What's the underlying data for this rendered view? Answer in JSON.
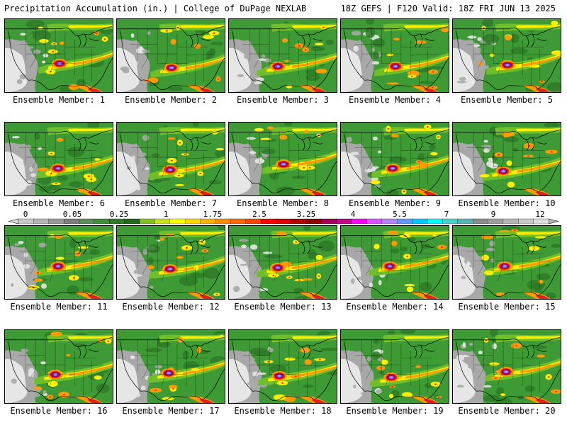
{
  "header": {
    "left_title": "Precipitation Accumulation (in.) | College of DuPage NEXLAB",
    "right_title": "18Z GEFS | F120 Valid: 18Z FRI JUN 13 2025"
  },
  "colorbar": {
    "tick_labels": [
      "0",
      "0.05",
      "0.25",
      "1",
      "1.75",
      "2.5",
      "3.25",
      "4",
      "5.5",
      "7",
      "9",
      "12"
    ],
    "colors": [
      "#c8c8c8",
      "#b4b4b4",
      "#9a9a9a",
      "#7e7e7e",
      "#5c8c5c",
      "#3d8f36",
      "#2e7a28",
      "#1f6a1c",
      "#7fc31c",
      "#c8e01e",
      "#ffff00",
      "#ffd700",
      "#ffb000",
      "#ff8c00",
      "#ff6a00",
      "#ff4500",
      "#ff0000",
      "#dc0000",
      "#b40000",
      "#8c0000",
      "#a0005a",
      "#c8008c",
      "#ff00ff",
      "#dc50ff",
      "#b482ff",
      "#6496ff",
      "#00c8ff",
      "#00ffff",
      "#46d2c8",
      "#5ab4b4",
      "#8c8c8c",
      "#a0a0a0",
      "#b4b4b4",
      "#c8c8c8",
      "#dcdcdc"
    ]
  },
  "map_colors": {
    "dry_light": "#e6e6e6",
    "dry_mid": "#a8a8a8",
    "green_dark": "#2e7a28",
    "green_mid": "#3d9a34",
    "green_light": "#6fbf2a",
    "yellow": "#ffee00",
    "orange": "#ff9a00",
    "red": "#e02020",
    "maroon": "#9a0030",
    "magenta": "#d000c0",
    "blue": "#6a8cff",
    "cyan": "#40e0ff"
  },
  "panels": [
    {
      "label": "Ensemble Member: 1"
    },
    {
      "label": "Ensemble Member: 2"
    },
    {
      "label": "Ensemble Member: 3"
    },
    {
      "label": "Ensemble Member: 4"
    },
    {
      "label": "Ensemble Member: 5"
    },
    {
      "label": "Ensemble Member: 6"
    },
    {
      "label": "Ensemble Member: 7"
    },
    {
      "label": "Ensemble Member: 8"
    },
    {
      "label": "Ensemble Member: 9"
    },
    {
      "label": "Ensemble Member: 10"
    },
    {
      "label": "Ensemble Member: 11"
    },
    {
      "label": "Ensemble Member: 12"
    },
    {
      "label": "Ensemble Member: 13"
    },
    {
      "label": "Ensemble Member: 14"
    },
    {
      "label": "Ensemble Member: 15"
    },
    {
      "label": "Ensemble Member: 16"
    },
    {
      "label": "Ensemble Member: 17"
    },
    {
      "label": "Ensemble Member: 18"
    },
    {
      "label": "Ensemble Member: 19"
    },
    {
      "label": "Ensemble Member: 20"
    }
  ]
}
